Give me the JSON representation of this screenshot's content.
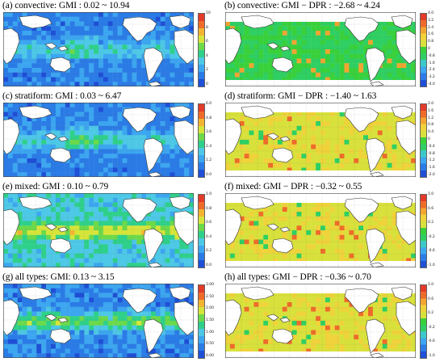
{
  "panels": [
    {
      "id": "a",
      "title": "(a) convective: GMI : 0.02 ~ 10.94",
      "kind": "gmi",
      "scheme": "blue",
      "ticks": [
        "10",
        "8",
        "6",
        "4",
        "2",
        "0"
      ]
    },
    {
      "id": "b",
      "title": "(b) convective: GMI − DPR : −2.68 ~ 4.24",
      "kind": "diff",
      "scheme": "green",
      "ticks": [
        "4.0",
        "3.2",
        "2.4",
        "1.6",
        "0.8",
        "0",
        "-0.8",
        "-1.6",
        "-2.4",
        "-3.2",
        "-4.0"
      ]
    },
    {
      "id": "c",
      "title": "(c) stratiform: GMI : 0.03 ~ 6.47",
      "kind": "gmi",
      "scheme": "blue",
      "ticks": [
        "6.0",
        "4.8",
        "3.6",
        "2.4",
        "1.2",
        "0.0"
      ]
    },
    {
      "id": "d",
      "title": "(d) stratiform: GMI − DPR : −1.40 ~ 1.63",
      "kind": "diff",
      "scheme": "yellow",
      "ticks": [
        "2.0",
        "1.6",
        "1.2",
        "0.8",
        "0.4",
        "0",
        "-0.4",
        "-0.8",
        "-1.2",
        "-1.6",
        "-2.0"
      ]
    },
    {
      "id": "e",
      "title": "(e) mixed: GMI : 0.10 ~ 0.79",
      "kind": "gmi",
      "scheme": "yellowgreen",
      "ticks": [
        "1.0",
        "0.8",
        "0.6",
        "0.4",
        "0.2",
        "0.0"
      ]
    },
    {
      "id": "f",
      "title": "(f) mixed: GMI − DPR : −0.32 ~ 0.55",
      "kind": "diff",
      "scheme": "yellow",
      "ticks": [
        "1.0",
        "0.6",
        "0.2",
        "-0.2",
        "-0.6",
        "-1.0"
      ]
    },
    {
      "id": "g",
      "title": "(g) all types: GMI: 0.13 ~ 3.15",
      "kind": "gmi",
      "scheme": "mixed",
      "ticks": [
        "3.00",
        "2.50",
        "2.00",
        "1.50",
        "1.00",
        "0.50",
        "0.00"
      ]
    },
    {
      "id": "h",
      "title": "(h) all types: GMI − DPR : −0.36 ~ 0.70",
      "kind": "diff",
      "scheme": "yellow",
      "ticks": [
        "1.0",
        "0.6",
        "0.2",
        "-0.2",
        "-0.6",
        "-1.0"
      ]
    }
  ],
  "colors": {
    "land": "#ffffff",
    "coast": "#333333",
    "blue_scale": [
      "#1f4fd6",
      "#2b7be6",
      "#3ca6f0",
      "#4dc8e6",
      "#2fd08a",
      "#6cd94a",
      "#d6e43a",
      "#f2b431",
      "#ee6b2a",
      "#e33a2a"
    ],
    "diverge_scale": [
      "#1f4fd6",
      "#2b7be6",
      "#3ca6f0",
      "#3cc8c8",
      "#2fcf63",
      "#39d13b",
      "#d8e13b",
      "#f0d23a",
      "#f2a531",
      "#ee6b2a",
      "#e33a2a"
    ]
  }
}
